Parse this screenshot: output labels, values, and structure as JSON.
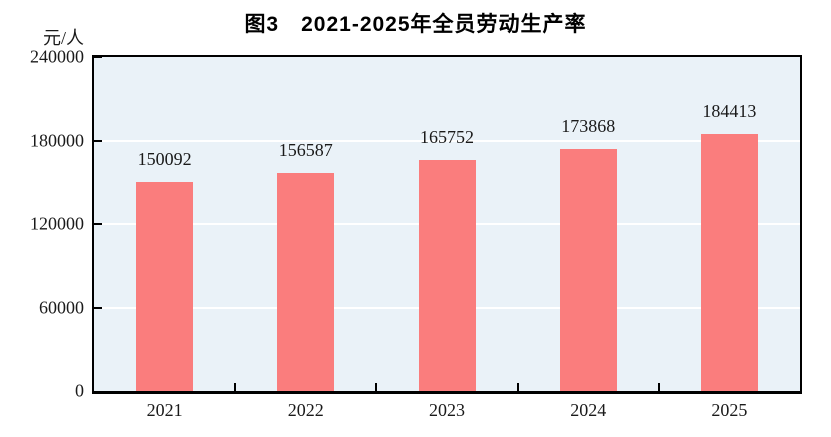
{
  "chart_data": {
    "type": "bar",
    "title": "图3　2021-2025年全员劳动生产率",
    "ylabel": "元/人",
    "xlabel": "",
    "categories": [
      "2021",
      "2022",
      "2023",
      "2024",
      "2025"
    ],
    "values": [
      150092,
      156587,
      165752,
      173868,
      184413
    ],
    "value_labels": [
      "150092",
      "156587",
      "165752",
      "173868",
      "184413"
    ],
    "ylim": [
      0,
      240000
    ],
    "yticks": [
      0,
      60000,
      120000,
      180000,
      240000
    ],
    "ytick_labels": [
      "0",
      "60000",
      "120000",
      "180000",
      "240000"
    ],
    "grid": "horizontal",
    "legend_position": "none",
    "colors": {
      "bar": "#FA7D7D",
      "plot_background": "#EAF2F8",
      "gridline": "#FFFFFF",
      "axis": "#000000",
      "text": "#1A1A1A",
      "page_background": "#FFFFFF"
    }
  }
}
